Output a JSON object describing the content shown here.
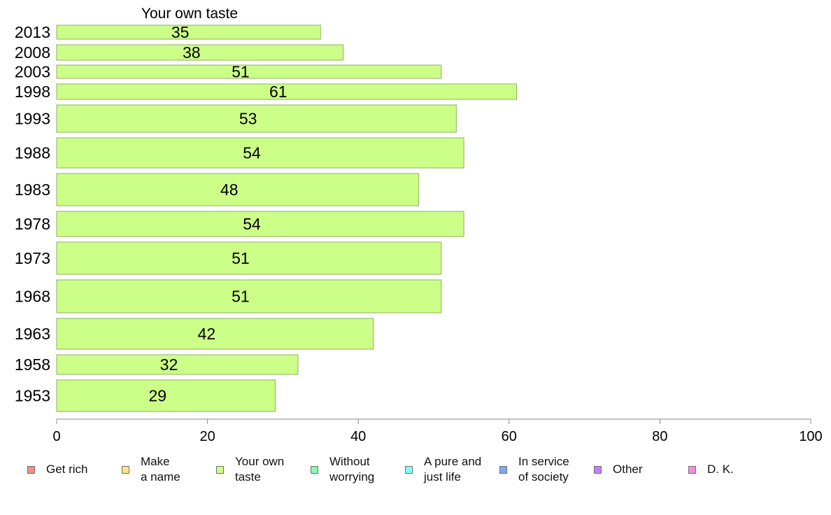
{
  "chart_data": {
    "type": "bar",
    "orientation": "horizontal",
    "title": "Your own taste",
    "categories": [
      "2013",
      "2008",
      "2003",
      "1998",
      "1993",
      "1988",
      "1983",
      "1978",
      "1973",
      "1968",
      "1963",
      "1958",
      "1953"
    ],
    "series": [
      {
        "name": "Your own taste",
        "values": [
          35,
          38,
          51,
          61,
          53,
          54,
          48,
          54,
          51,
          51,
          42,
          32,
          29
        ],
        "color": "#ccff88"
      }
    ],
    "xlim": [
      0,
      100
    ],
    "xticks": [
      "0",
      "20",
      "40",
      "60",
      "80",
      "100"
    ],
    "grid": false,
    "legend_position": "bottom"
  },
  "legend": [
    {
      "label": "Get rich",
      "color": "#f28b8b"
    },
    {
      "label": "Make\na name",
      "color": "#ffe680"
    },
    {
      "label": "Your own\ntaste",
      "color": "#ccff88"
    },
    {
      "label": "Without\nworrying",
      "color": "#80ffb0"
    },
    {
      "label": "A pure and\njust life",
      "color": "#80ffff"
    },
    {
      "label": "In service\nof society",
      "color": "#80a8f0"
    },
    {
      "label": "Other",
      "color": "#c080ff"
    },
    {
      "label": "D. K.",
      "color": "#ff88e0"
    }
  ],
  "colors": {
    "bar_fill": "#ccff88",
    "bar_stroke": "#8fb060",
    "axis": "#888888"
  }
}
